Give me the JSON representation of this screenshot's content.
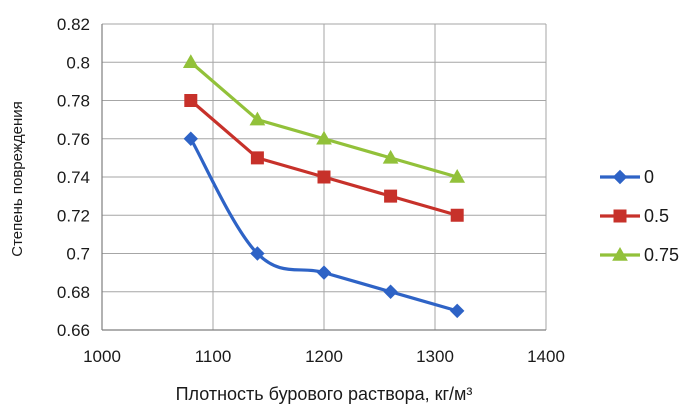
{
  "chart_data": {
    "type": "line",
    "title": "",
    "xlabel": "Плотность бурового раствора, кг/м³",
    "ylabel": "Степень повреждения",
    "xlim": [
      1000,
      1400
    ],
    "ylim": [
      0.66,
      0.82
    ],
    "xticks": [
      1000,
      1100,
      1200,
      1300,
      1400
    ],
    "yticks": [
      0.66,
      0.68,
      0.7,
      0.72,
      0.74,
      0.76,
      0.78,
      0.8,
      0.82
    ],
    "ytick_labels": [
      "0.66",
      "0.68",
      "0.7",
      "0.72",
      "0.74",
      "0.76",
      "0.78",
      "0.8",
      "0.82"
    ],
    "xtick_labels": [
      "1000",
      "1100",
      "1200",
      "1300",
      "1400"
    ],
    "grid": true,
    "legend_position": "right",
    "x": [
      1080,
      1140,
      1200,
      1260,
      1320
    ],
    "series": [
      {
        "name": "0",
        "values": [
          0.76,
          0.7,
          0.69,
          0.68,
          0.67
        ],
        "color": "#2e63c6",
        "marker": "diamond",
        "smooth": true
      },
      {
        "name": "0.5",
        "values": [
          0.78,
          0.75,
          0.74,
          0.73,
          0.72
        ],
        "color": "#c7312a",
        "marker": "square",
        "smooth": false
      },
      {
        "name": "0.75",
        "values": [
          0.8,
          0.77,
          0.76,
          0.75,
          0.74
        ],
        "color": "#92c13a",
        "marker": "triangle",
        "smooth": false
      }
    ]
  }
}
